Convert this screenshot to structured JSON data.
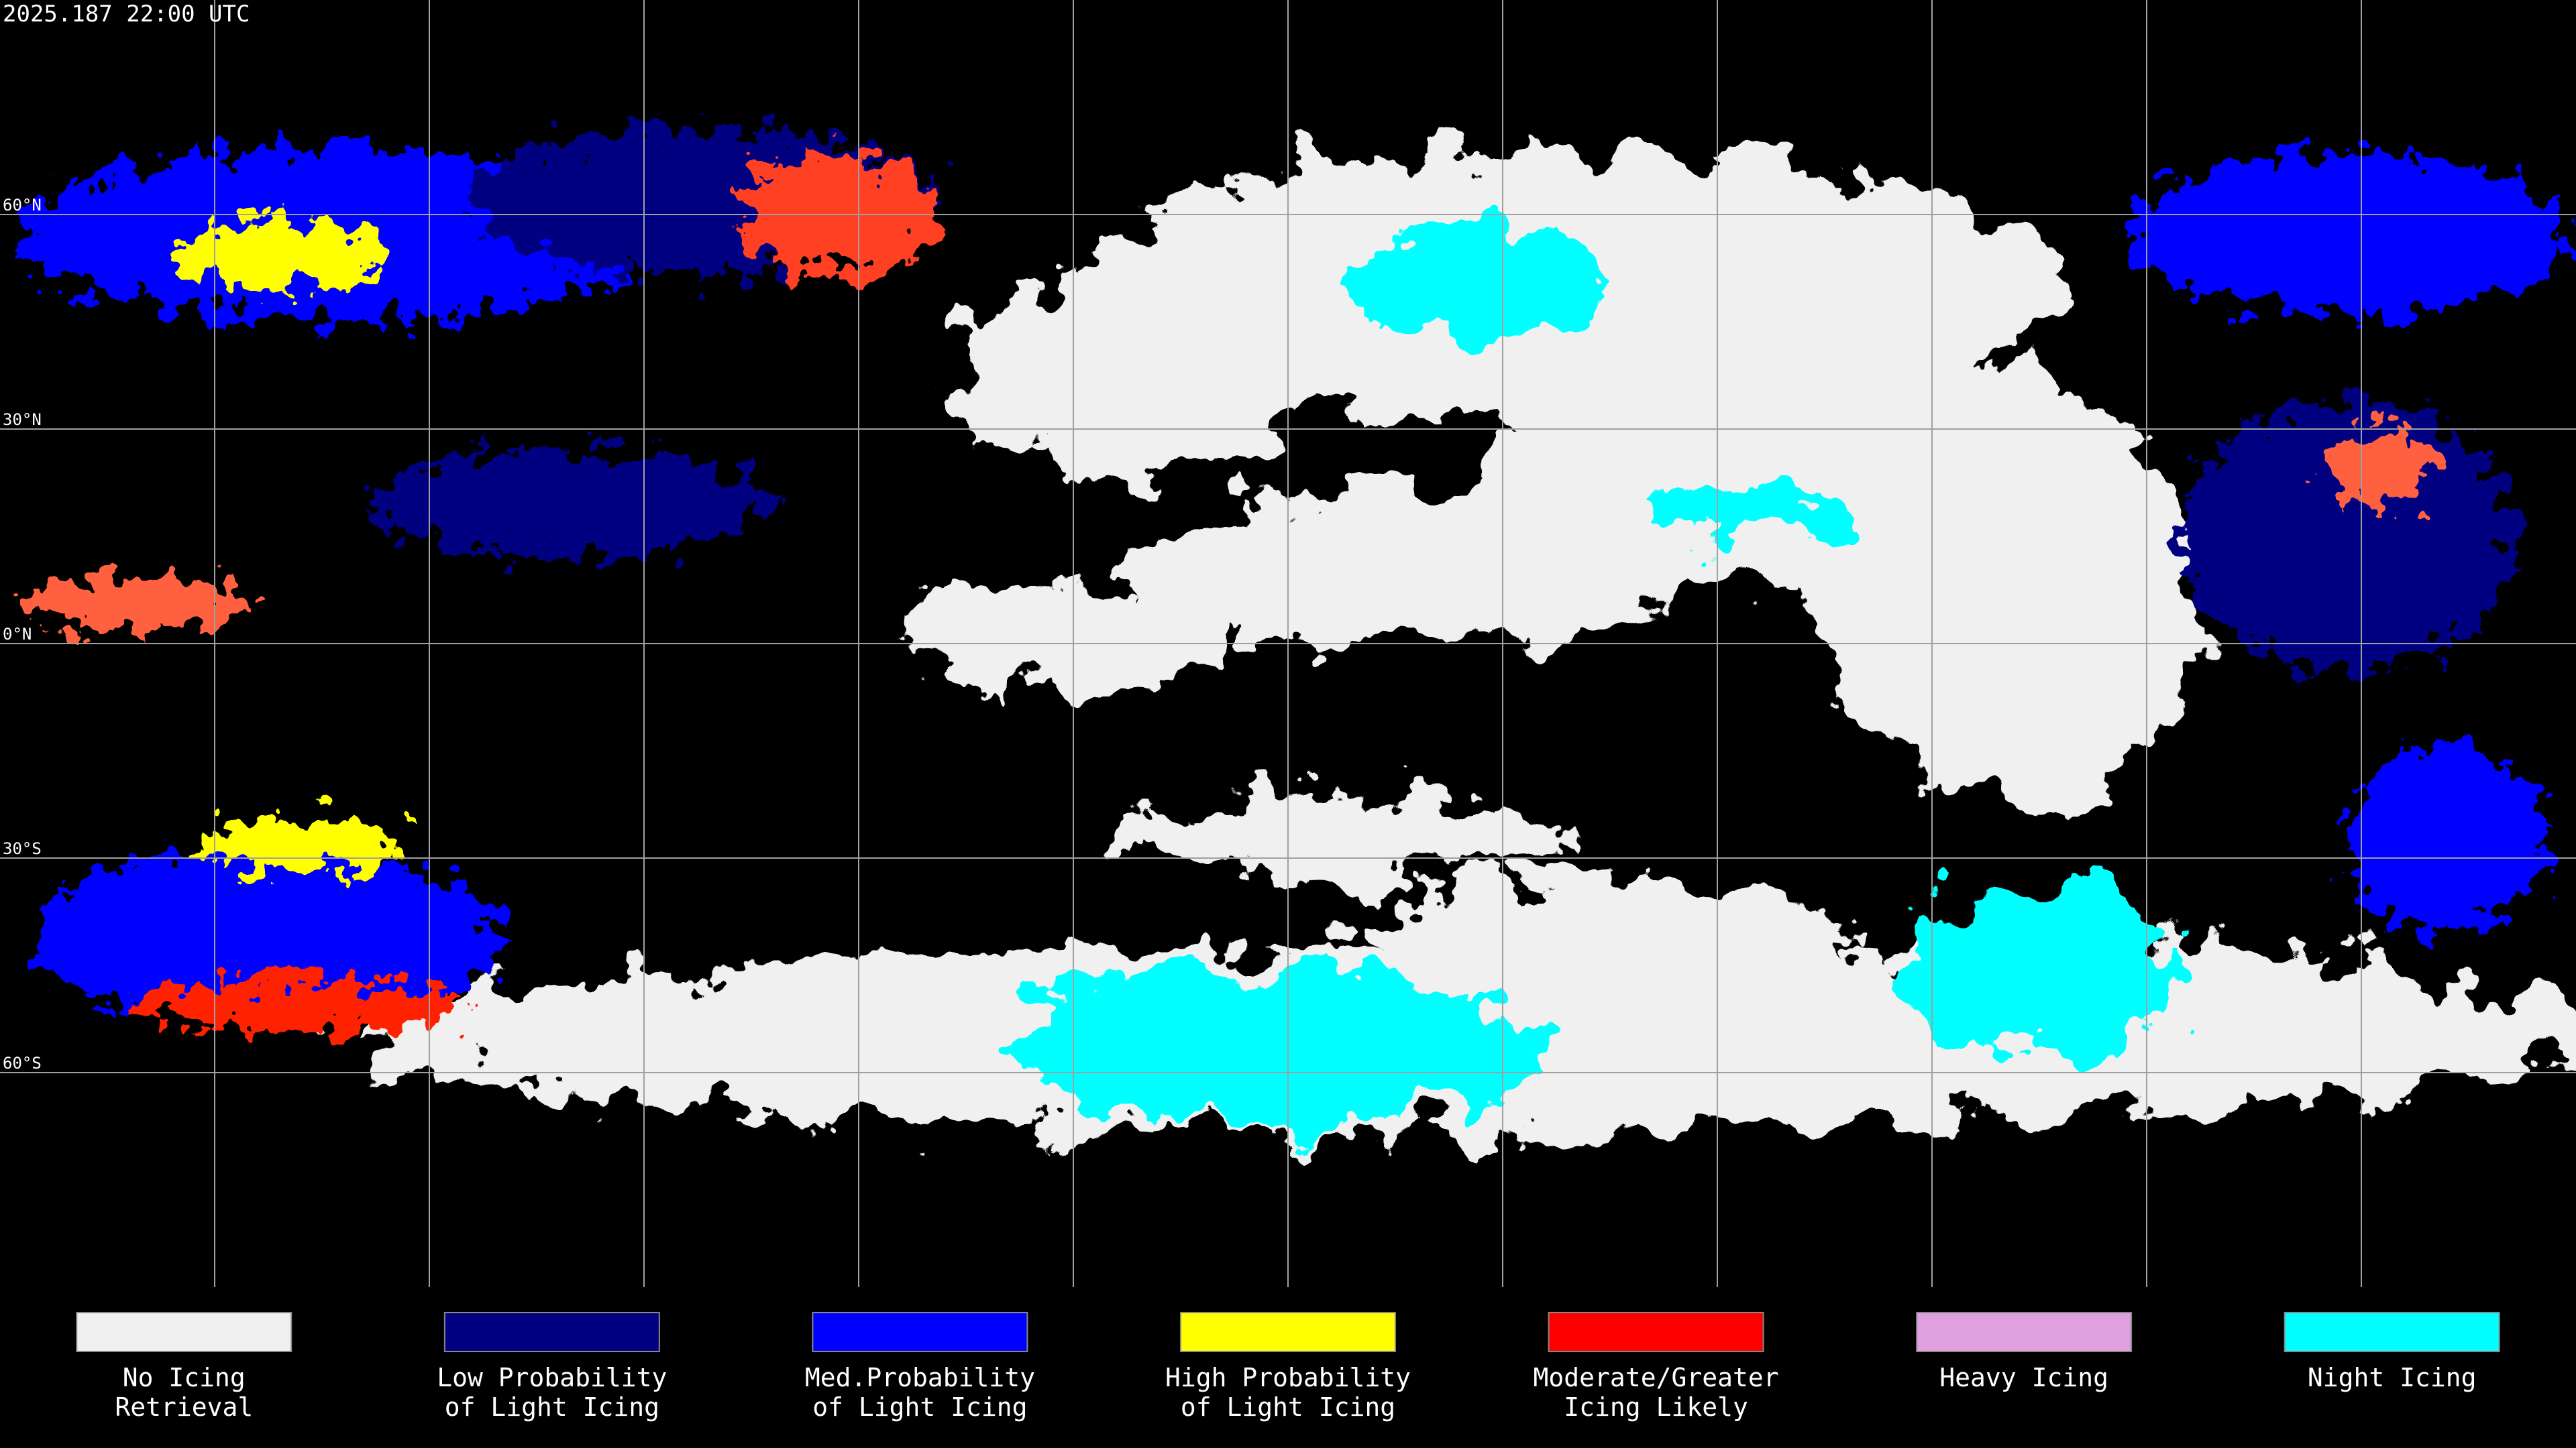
{
  "header": {
    "timestamp": "2025.187 22:00 UTC"
  },
  "lat_labels": [
    "60°N",
    "30°N",
    "0°N",
    "30°S",
    "60°S"
  ],
  "legend": {
    "items": [
      {
        "lines": [
          "No Icing",
          "Retrieval"
        ],
        "color": "#f0f0f0"
      },
      {
        "lines": [
          "Low Probability",
          "of Light Icing"
        ],
        "color": "#000080"
      },
      {
        "lines": [
          "Med.Probability",
          "of Light Icing"
        ],
        "color": "#0000ff"
      },
      {
        "lines": [
          "High Probability",
          "of Light Icing"
        ],
        "color": "#ffff00"
      },
      {
        "lines": [
          "Moderate/Greater",
          "Icing Likely"
        ],
        "color": "#ff0000"
      },
      {
        "lines": [
          "Heavy Icing"
        ],
        "color": "#e0a0e0"
      },
      {
        "lines": [
          "Night Icing"
        ],
        "color": "#00ffff"
      }
    ]
  }
}
